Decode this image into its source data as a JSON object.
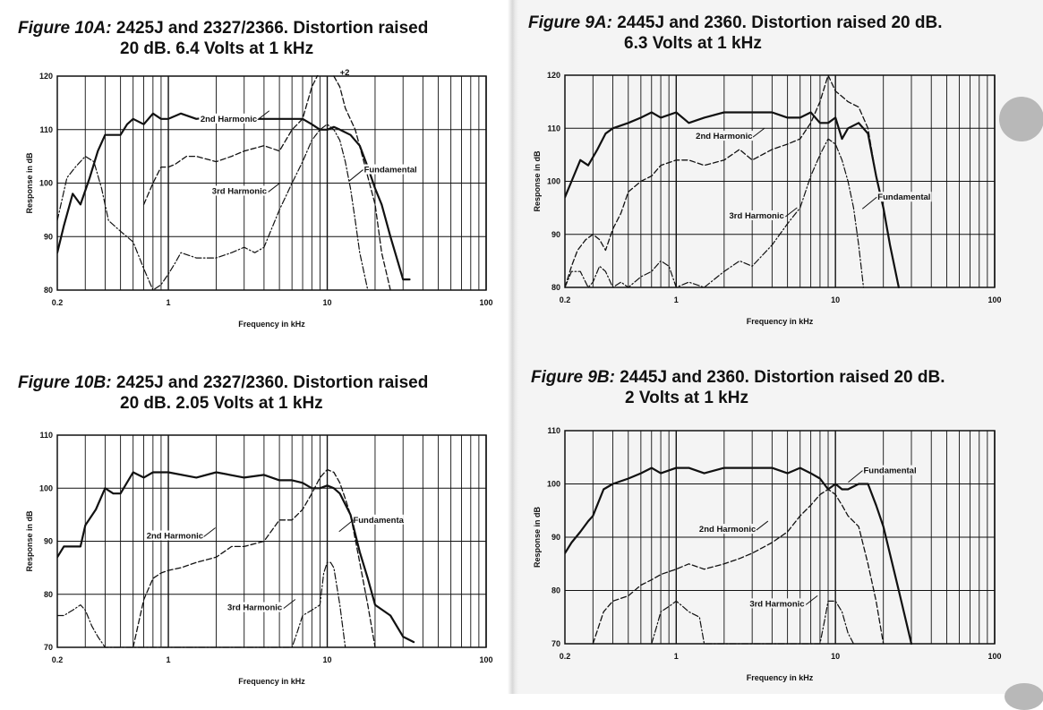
{
  "chart_data": [
    {
      "type": "line",
      "figure_tag": "Figure 10A:",
      "title_line1": "2425J and 2327/2366. Distortion raised",
      "title_line2": "20 dB. 6.4 Volts at 1 kHz",
      "xlabel": "Frequency in kHz",
      "ylabel": "Response in dB",
      "x_scale": "log",
      "xlim": [
        0.2,
        100
      ],
      "ylim": [
        80,
        120
      ],
      "x_ticks": [
        "0.2",
        "1",
        "10",
        "100"
      ],
      "y_ticks": [
        "80",
        "90",
        "100",
        "110",
        "120"
      ],
      "grid": true,
      "annotations": [
        "2nd Harmonic",
        "3rd Harmonic",
        "Fundamental",
        "+2"
      ],
      "series": [
        {
          "name": "Fundamental",
          "style": "solid",
          "x": [
            0.2,
            0.22,
            0.25,
            0.28,
            0.32,
            0.36,
            0.4,
            0.45,
            0.5,
            0.55,
            0.6,
            0.7,
            0.8,
            0.9,
            1.0,
            1.2,
            1.5,
            2,
            2.5,
            3,
            4,
            5,
            6,
            7,
            8,
            9,
            10,
            11,
            12,
            14,
            16,
            18,
            20,
            22,
            25,
            28,
            30,
            33
          ],
          "y": [
            87,
            92,
            98,
            96,
            101,
            106,
            109,
            109,
            109,
            111,
            112,
            111,
            113,
            112,
            112,
            113,
            112,
            112.5,
            112,
            112,
            112,
            112,
            112,
            112,
            111,
            110,
            110,
            110.5,
            110,
            109,
            107,
            103,
            99,
            96,
            90,
            85,
            82,
            82
          ]
        },
        {
          "name": "2nd Harmonic",
          "style": "dashed",
          "x": [
            0.7,
            0.8,
            0.9,
            1.0,
            1.1,
            1.3,
            1.5,
            2,
            2.5,
            3,
            4,
            5,
            6,
            7,
            8,
            9,
            10,
            11,
            12,
            13,
            15,
            17,
            20,
            22,
            25
          ],
          "y": [
            96,
            100,
            103,
            103,
            103.5,
            105,
            105,
            104,
            105,
            106,
            107,
            106,
            110,
            112,
            118,
            121,
            121,
            120,
            118,
            114,
            110,
            104,
            96,
            87,
            80
          ]
        },
        {
          "name": "3rd Harmonic",
          "style": "dashdot",
          "x": [
            0.2,
            0.23,
            0.26,
            0.3,
            0.34,
            0.38,
            0.42,
            0.5,
            0.6,
            0.7,
            0.8,
            0.9,
            1.0,
            1.1,
            1.2,
            1.5,
            2,
            2.5,
            3,
            3.5,
            4,
            5,
            6,
            7,
            8,
            9,
            10,
            11,
            12,
            13,
            14,
            15,
            16,
            18
          ],
          "y": [
            93,
            101,
            103,
            105,
            104,
            99,
            93,
            91,
            89,
            84,
            80,
            81,
            83,
            85,
            87,
            86,
            86,
            87,
            88,
            87,
            88,
            95,
            100,
            104,
            108,
            110,
            111,
            110,
            108,
            104,
            99,
            93,
            87,
            80
          ]
        }
      ]
    },
    {
      "type": "line",
      "figure_tag": "Figure 10B:",
      "title_line1": "2425J and 2327/2360. Distortion raised",
      "title_line2": "20 dB. 2.05 Volts at 1 kHz",
      "xlabel": "Frequency in kHz",
      "ylabel": "Response in dB",
      "x_scale": "log",
      "xlim": [
        0.2,
        100
      ],
      "ylim": [
        70,
        110
      ],
      "x_ticks": [
        "0.2",
        "1",
        "10",
        "100"
      ],
      "y_ticks": [
        "70",
        "80",
        "90",
        "100",
        "110"
      ],
      "grid": true,
      "annotations": [
        "2nd Harmonic",
        "3rd Harmonic",
        "Fundamenta"
      ],
      "series": [
        {
          "name": "Fundamental",
          "style": "solid",
          "x": [
            0.2,
            0.22,
            0.25,
            0.28,
            0.3,
            0.35,
            0.4,
            0.45,
            0.5,
            0.6,
            0.7,
            0.8,
            1.0,
            1.5,
            2,
            3,
            4,
            5,
            6,
            7,
            8,
            9,
            10,
            11,
            12,
            14,
            16,
            18,
            20,
            25,
            30,
            35
          ],
          "y": [
            87,
            89,
            89,
            89,
            93,
            96,
            100,
            99,
            99,
            103,
            102,
            103,
            103,
            102,
            103,
            102,
            102.5,
            101.5,
            101.5,
            101,
            100,
            100,
            100.5,
            100,
            99,
            95,
            88,
            83,
            78,
            76,
            72,
            71
          ]
        },
        {
          "name": "2nd Harmonic",
          "style": "dashed",
          "x": [
            0.6,
            0.7,
            0.8,
            0.9,
            1.0,
            1.2,
            1.5,
            2,
            2.5,
            3,
            4,
            5,
            6,
            7,
            8,
            9,
            10,
            11,
            12,
            13,
            14,
            16,
            18,
            20
          ],
          "y": [
            70,
            79,
            83,
            84,
            84.5,
            85,
            86,
            87,
            89,
            89,
            90,
            94,
            94,
            96,
            99,
            102,
            103.5,
            103,
            101,
            98,
            95,
            86,
            78,
            70
          ]
        },
        {
          "name": "3rd Harmonic",
          "style": "dashdot",
          "x": [
            0.2,
            0.22,
            0.25,
            0.28,
            0.3,
            0.33,
            0.36,
            0.4,
            6.0,
            6.5,
            7,
            8,
            9,
            9.5,
            10,
            10.5,
            11,
            12,
            13
          ],
          "y": [
            76,
            76,
            77,
            78,
            77,
            74,
            72,
            70,
            70,
            73,
            76,
            77,
            78,
            84,
            86,
            86,
            85,
            78,
            70
          ]
        }
      ]
    },
    {
      "type": "line",
      "figure_tag": "Figure 9A:",
      "title_line1": "2445J and 2360. Distortion raised 20 dB.",
      "title_line2": "6.3 Volts at 1 kHz",
      "xlabel": "Frequency in kHz",
      "ylabel": "Response in dB",
      "x_scale": "log",
      "xlim": [
        0.2,
        100
      ],
      "ylim": [
        80,
        120
      ],
      "x_ticks": [
        "0.2",
        "1",
        "10",
        "100"
      ],
      "y_ticks": [
        "80",
        "90",
        "100",
        "110",
        "120"
      ],
      "grid": true,
      "annotations": [
        "2nd Harmonic",
        "3rd Harmonic",
        "Fundamental"
      ],
      "series": [
        {
          "name": "Fundamental",
          "style": "solid",
          "x": [
            0.2,
            0.22,
            0.25,
            0.28,
            0.32,
            0.36,
            0.4,
            0.5,
            0.6,
            0.7,
            0.8,
            1.0,
            1.2,
            1.5,
            2,
            3,
            4,
            5,
            6,
            7,
            8,
            9,
            10,
            11,
            12,
            14,
            16,
            18,
            20,
            22,
            25
          ],
          "y": [
            97,
            100,
            104,
            103,
            106,
            109,
            110,
            111,
            112,
            113,
            112,
            113,
            111,
            112,
            113,
            113,
            113,
            112,
            112,
            113,
            111,
            111,
            112,
            108,
            110,
            111,
            109,
            101,
            95,
            88,
            80
          ]
        },
        {
          "name": "2nd Harmonic",
          "style": "dashed",
          "x": [
            0.2,
            0.22,
            0.24,
            0.27,
            0.3,
            0.33,
            0.36,
            0.4,
            0.45,
            0.5,
            0.6,
            0.7,
            0.8,
            1.0,
            1.2,
            1.5,
            2,
            2.5,
            3,
            4,
            5,
            6,
            7,
            8,
            9,
            10,
            11,
            12,
            14,
            16,
            18
          ],
          "y": [
            80,
            84,
            87,
            89,
            90,
            89,
            87,
            91,
            94,
            98,
            100,
            101,
            103,
            104,
            104,
            103,
            104,
            106,
            104,
            106,
            107,
            108,
            111,
            115,
            120,
            117,
            116,
            115,
            114,
            110,
            101
          ]
        },
        {
          "name": "3rd Harmonic",
          "style": "dashdot",
          "x": [
            0.2,
            0.22,
            0.25,
            0.28,
            0.3,
            0.33,
            0.36,
            0.4,
            0.45,
            0.5,
            0.6,
            0.7,
            0.8,
            0.9,
            1.0,
            1.2,
            1.5,
            2,
            2.5,
            3,
            4,
            5,
            6,
            7,
            8,
            9,
            10,
            11,
            12,
            13,
            14,
            15
          ],
          "y": [
            80,
            83,
            83,
            80,
            81,
            84,
            83,
            80,
            81,
            80,
            82,
            83,
            85,
            84,
            80,
            81,
            80,
            83,
            85,
            84,
            88,
            92,
            95,
            101,
            105,
            108,
            107,
            104,
            100,
            95,
            88,
            80
          ]
        }
      ]
    },
    {
      "type": "line",
      "figure_tag": "Figure 9B:",
      "title_line1": "2445J and 2360. Distortion raised 20 dB.",
      "title_line2": "2 Volts at 1 kHz",
      "xlabel": "Frequency in kHz",
      "ylabel": "Response in dB",
      "x_scale": "log",
      "xlim": [
        0.2,
        100
      ],
      "ylim": [
        70,
        110
      ],
      "x_ticks": [
        "0.2",
        "1",
        "10",
        "100"
      ],
      "y_ticks": [
        "70",
        "80",
        "90",
        "100",
        "110"
      ],
      "grid": true,
      "annotations": [
        "2nd Harmonic",
        "3rd Harmonic",
        "Fundamental"
      ],
      "series": [
        {
          "name": "Fundamental",
          "style": "solid",
          "x": [
            0.2,
            0.22,
            0.25,
            0.28,
            0.3,
            0.35,
            0.4,
            0.5,
            0.6,
            0.7,
            0.8,
            1.0,
            1.2,
            1.5,
            2,
            3,
            4,
            5,
            6,
            7,
            8,
            9,
            10,
            11,
            12,
            14,
            16,
            18,
            20,
            25,
            30
          ],
          "y": [
            87,
            89,
            91,
            93,
            94,
            99,
            100,
            101,
            102,
            103,
            102,
            103,
            103,
            102,
            103,
            103,
            103,
            102,
            103,
            102,
            101,
            99,
            100,
            99,
            99,
            100,
            100,
            96,
            92,
            80,
            70
          ]
        },
        {
          "name": "2nd Harmonic",
          "style": "dashed",
          "x": [
            0.3,
            0.35,
            0.4,
            0.5,
            0.6,
            0.7,
            0.8,
            1.0,
            1.2,
            1.5,
            2,
            2.5,
            3,
            4,
            5,
            6,
            7,
            8,
            9,
            10,
            11,
            12,
            14,
            16,
            18,
            20
          ],
          "y": [
            70,
            76,
            78,
            79,
            81,
            82,
            83,
            84,
            85,
            84,
            85,
            86,
            87,
            89,
            91,
            94,
            96,
            98,
            99,
            98,
            96,
            94,
            92,
            85,
            78,
            70
          ]
        },
        {
          "name": "3rd Harmonic",
          "style": "dashdot",
          "x": [
            0.7,
            0.75,
            0.8,
            0.9,
            1.0,
            1.1,
            1.2,
            1.4,
            1.5,
            8.0,
            8.5,
            9,
            10,
            11,
            12,
            13
          ],
          "y": [
            70,
            73,
            76,
            77,
            78,
            77,
            76,
            75,
            70,
            70,
            74,
            78,
            78,
            76,
            72,
            70
          ]
        }
      ]
    }
  ]
}
